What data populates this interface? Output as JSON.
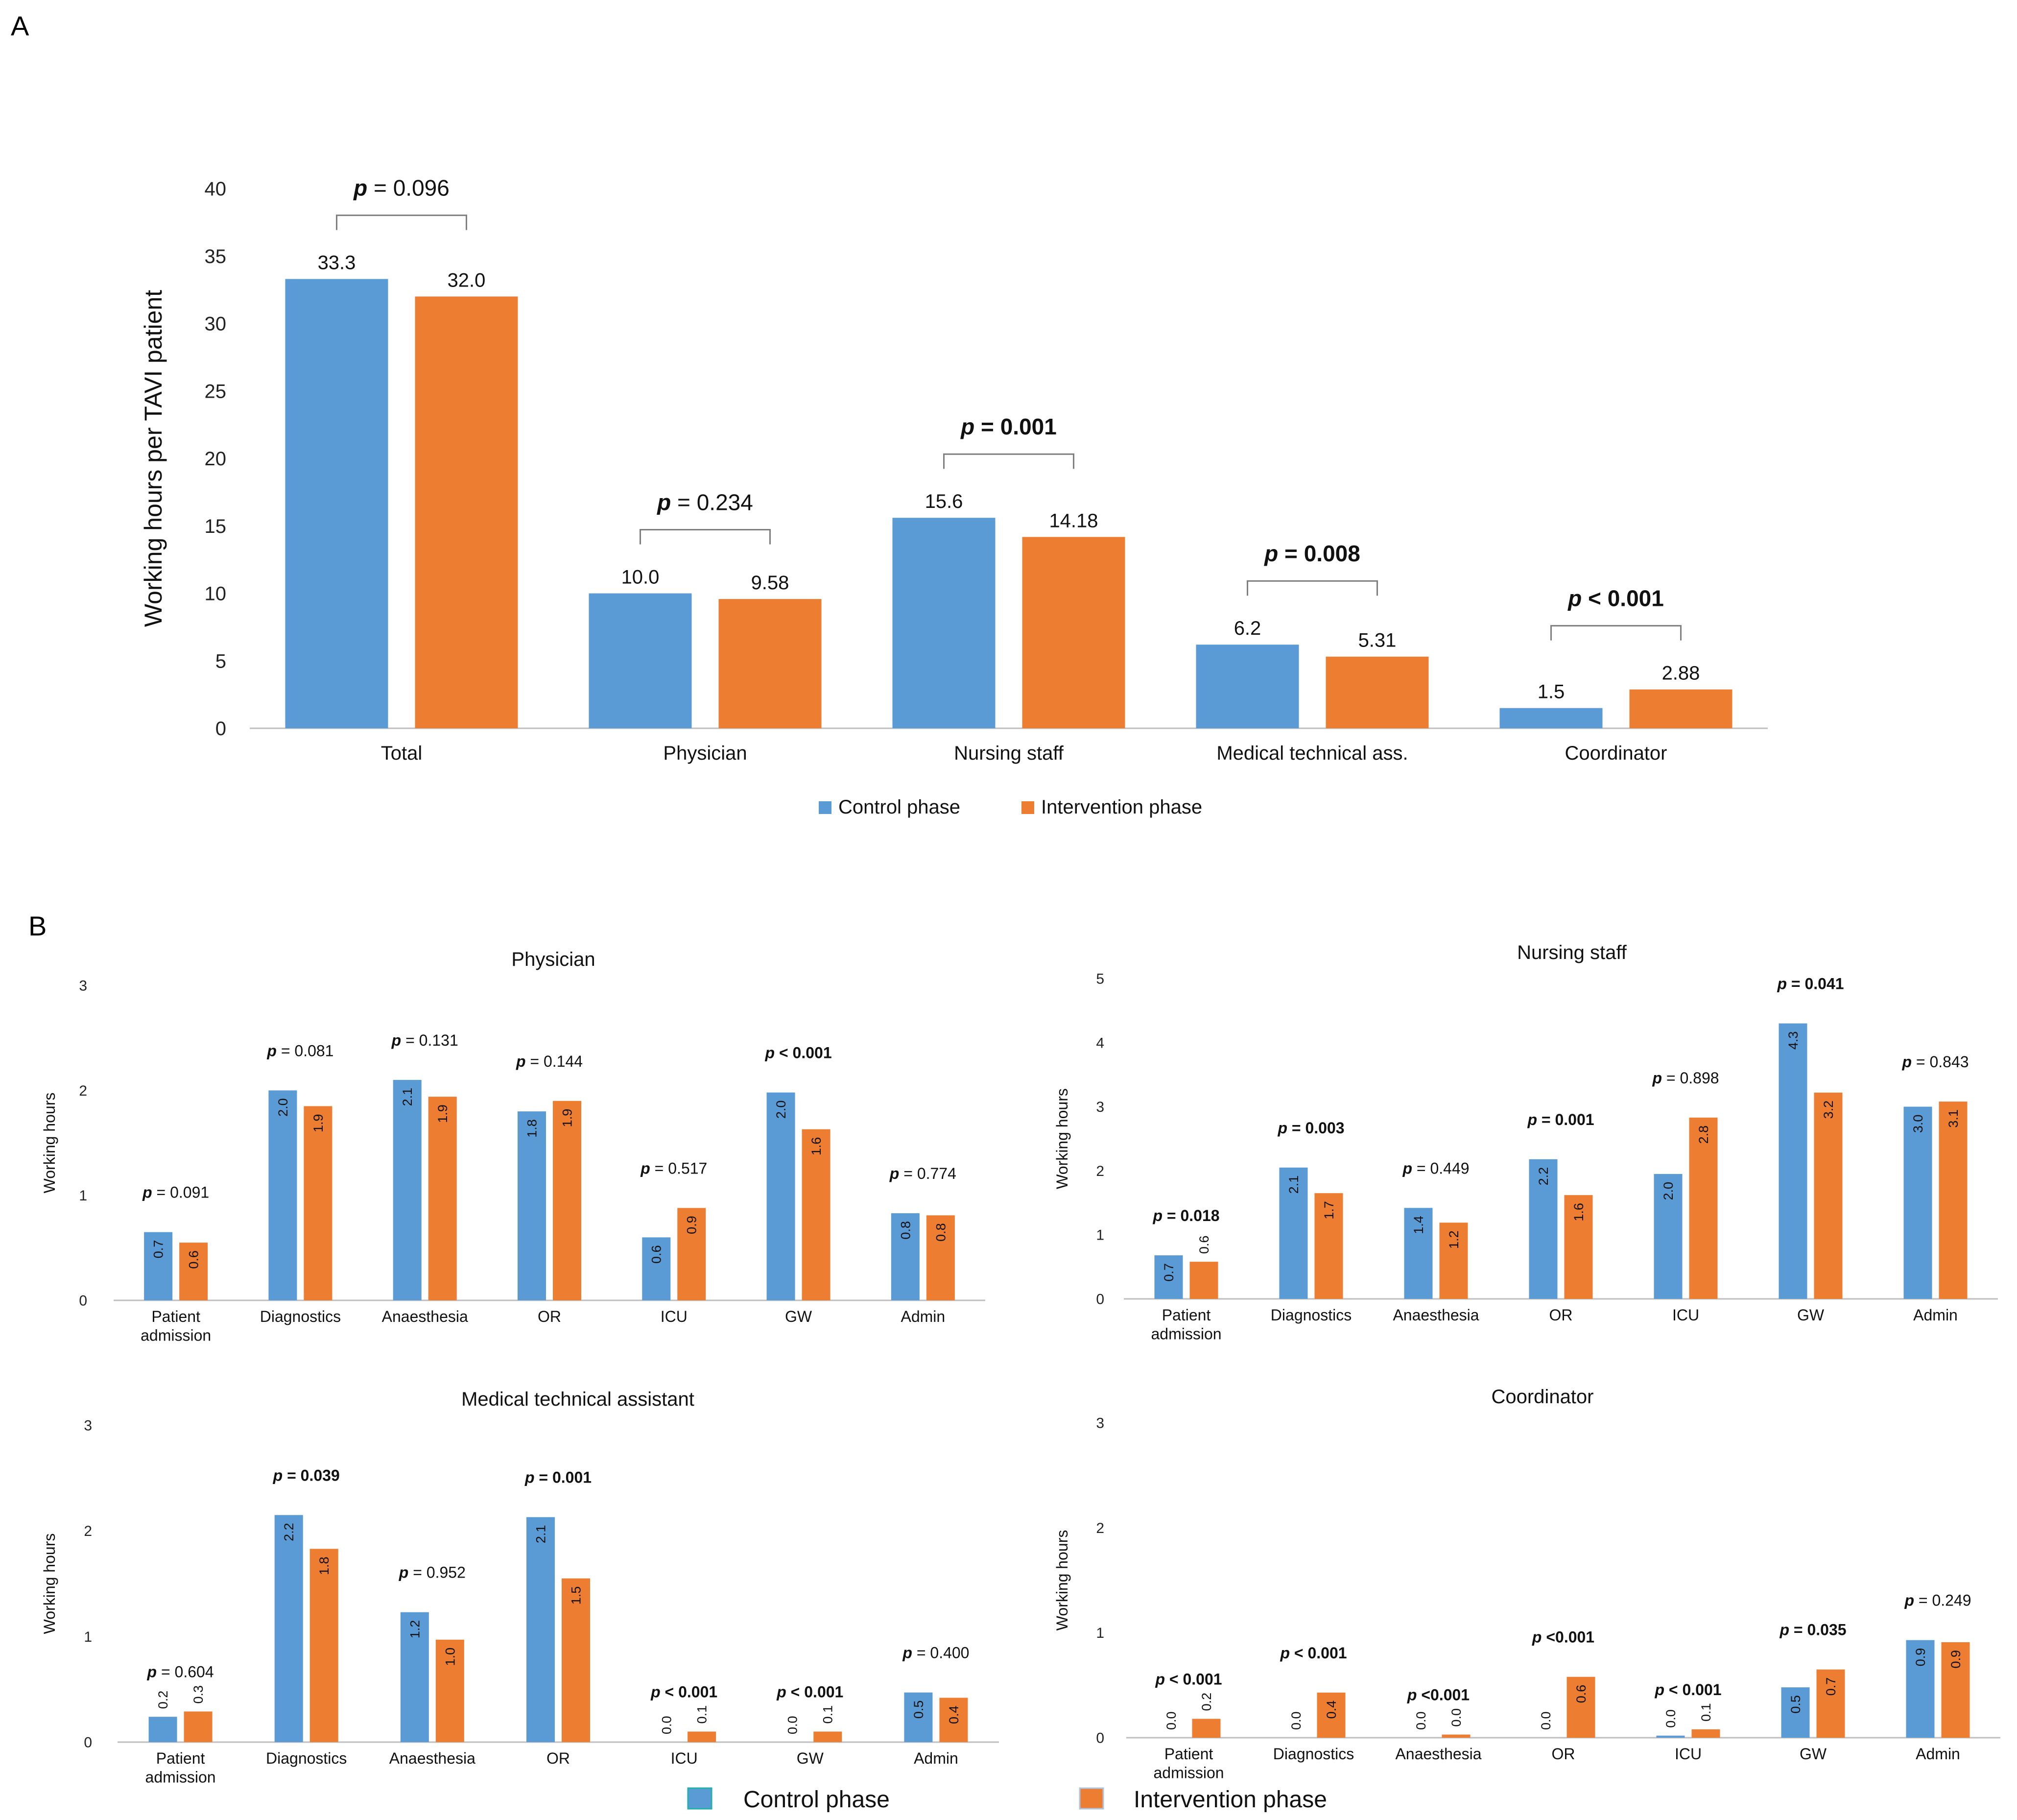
{
  "panel_labels": {
    "a": "A",
    "b": "B"
  },
  "colors": {
    "control": "#5B9BD5",
    "intervention": "#ED7D31",
    "axis": "#BFBFBF",
    "bracket": "#7F7F7F"
  },
  "legend": {
    "control": "Control phase",
    "intervention": "Intervention phase"
  },
  "p_prefix": "p",
  "chart_data": [
    {
      "id": "A",
      "type": "bar",
      "title": "",
      "ylabel": "Working hours per TAVI patient",
      "ylim": [
        0,
        40
      ],
      "yticks": [
        0,
        5,
        10,
        15,
        20,
        25,
        30,
        35,
        40
      ],
      "categories": [
        "Total",
        "Physician",
        "Nursing staff",
        "Medical technical ass.",
        "Coordinator"
      ],
      "series": [
        {
          "name": "Control phase",
          "values": [
            33.3,
            10.0,
            15.6,
            6.2,
            1.5
          ],
          "labels": [
            "33.3",
            "10.0",
            "15.6",
            "6.2",
            "1.5"
          ]
        },
        {
          "name": "Intervention phase",
          "values": [
            32.0,
            9.58,
            14.18,
            5.31,
            2.88
          ],
          "labels": [
            "32.0",
            "9.58",
            "14.18",
            "5.31",
            "2.88"
          ]
        }
      ],
      "pvalues": [
        {
          "text": " = 0.096",
          "bold": false
        },
        {
          "text": " = 0.234",
          "bold": false
        },
        {
          "text": " = 0.001",
          "bold": true
        },
        {
          "text": " = 0.008",
          "bold": true
        },
        {
          "text": " < 0.001",
          "bold": true
        }
      ]
    },
    {
      "id": "B1",
      "type": "bar",
      "title": "Physician",
      "ylabel": "Working hours",
      "ylim": [
        0,
        3
      ],
      "yticks": [
        0,
        1,
        2,
        3
      ],
      "categories": [
        "Patient admission",
        "Diagnostics",
        "Anaesthesia",
        "OR",
        "ICU",
        "GW",
        "Admin"
      ],
      "series": [
        {
          "name": "Control phase",
          "values": [
            0.65,
            2.0,
            2.1,
            1.8,
            0.6,
            1.98,
            0.83
          ],
          "labels": [
            "0.7",
            "2.0",
            "2.1",
            "1.8",
            "0.6",
            "2.0",
            "0.8"
          ]
        },
        {
          "name": "Intervention phase",
          "values": [
            0.55,
            1.85,
            1.94,
            1.9,
            0.88,
            1.63,
            0.81
          ],
          "labels": [
            "0.6",
            "1.9",
            "1.9",
            "1.9",
            "0.9",
            "1.6",
            "0.8"
          ]
        }
      ],
      "pvalues": [
        {
          "text": " = 0.091",
          "bold": false
        },
        {
          "text": " = 0.081",
          "bold": false
        },
        {
          "text": " = 0.131",
          "bold": false
        },
        {
          "text": " = 0.144",
          "bold": false
        },
        {
          "text": " = 0.517",
          "bold": false
        },
        {
          "text": " < 0.001",
          "bold": true
        },
        {
          "text": " = 0.774",
          "bold": false
        }
      ]
    },
    {
      "id": "B2",
      "type": "bar",
      "title": "Nursing staff",
      "ylabel": "Working hours",
      "ylim": [
        0,
        5
      ],
      "yticks": [
        0,
        1,
        2,
        3,
        4,
        5
      ],
      "categories": [
        "Patient admission",
        "Diagnostics",
        "Anaesthesia",
        "OR",
        "ICU",
        "GW",
        "Admin"
      ],
      "series": [
        {
          "name": "Control phase",
          "values": [
            0.68,
            2.05,
            1.42,
            2.18,
            1.95,
            4.3,
            3.0
          ],
          "labels": [
            "0.7",
            "2.1",
            "1.4",
            "2.2",
            "2.0",
            "4.3",
            "3.0"
          ]
        },
        {
          "name": "Intervention phase",
          "values": [
            0.58,
            1.65,
            1.19,
            1.62,
            2.83,
            3.22,
            3.08
          ],
          "labels": [
            "0.6",
            "1.7",
            "1.2",
            "1.6",
            "2.8",
            "3.2",
            "3.1"
          ]
        }
      ],
      "pvalues": [
        {
          "text": " = 0.018",
          "bold": true
        },
        {
          "text": " = 0.003",
          "bold": true
        },
        {
          "text": " = 0.449",
          "bold": false
        },
        {
          "text": " = 0.001",
          "bold": true
        },
        {
          "text": " = 0.898",
          "bold": false
        },
        {
          "text": " = 0.041",
          "bold": true
        },
        {
          "text": " = 0.843",
          "bold": false
        }
      ]
    },
    {
      "id": "B3",
      "type": "bar",
      "title": "Medical technical assistant",
      "ylabel": "Working hours",
      "ylim": [
        0,
        3
      ],
      "yticks": [
        0,
        1,
        2,
        3
      ],
      "categories": [
        "Patient admission",
        "Diagnostics",
        "Anaesthesia",
        "OR",
        "ICU",
        "GW",
        "Admin"
      ],
      "series": [
        {
          "name": "Control phase",
          "values": [
            0.24,
            2.15,
            1.23,
            2.13,
            0.0,
            0.0,
            0.47
          ],
          "labels": [
            "0.2",
            "2.2",
            "1.2",
            "2.1",
            "0.0",
            "0.0",
            "0.5"
          ]
        },
        {
          "name": "Intervention phase",
          "values": [
            0.29,
            1.83,
            0.97,
            1.55,
            0.1,
            0.1,
            0.42
          ],
          "labels": [
            "0.3",
            "1.8",
            "1.0",
            "1.5",
            "0.1",
            "0.1",
            "0.4"
          ]
        }
      ],
      "pvalues": [
        {
          "text": " = 0.604",
          "bold": false
        },
        {
          "text": " = 0.039",
          "bold": true
        },
        {
          "text": " = 0.952",
          "bold": false
        },
        {
          "text": " = 0.001",
          "bold": true
        },
        {
          "text": " < 0.001",
          "bold": true
        },
        {
          "text": " < 0.001",
          "bold": true
        },
        {
          "text": " = 0.400",
          "bold": false
        }
      ]
    },
    {
      "id": "B4",
      "type": "bar",
      "title": "Coordinator",
      "ylabel": "Working hours",
      "ylim": [
        0,
        3
      ],
      "yticks": [
        0,
        1,
        2,
        3
      ],
      "categories": [
        "Patient admission",
        "Diagnostics",
        "Anaesthesia",
        "OR",
        "ICU",
        "GW",
        "Admin"
      ],
      "series": [
        {
          "name": "Control phase",
          "values": [
            0.0,
            0.0,
            0.0,
            0.0,
            0.02,
            0.48,
            0.93
          ],
          "labels": [
            "0.0",
            "0.0",
            "0.0",
            "0.0",
            "0.0",
            "0.5",
            "0.9"
          ]
        },
        {
          "name": "Intervention phase",
          "values": [
            0.18,
            0.43,
            0.03,
            0.58,
            0.08,
            0.65,
            0.91
          ],
          "labels": [
            "0.2",
            "0.4",
            "0.0",
            "0.6",
            "0.1",
            "0.7",
            "0.9"
          ]
        }
      ],
      "pvalues": [
        {
          "text": " < 0.001",
          "bold": true
        },
        {
          "text": " < 0.001",
          "bold": true
        },
        {
          "text": " <0.001",
          "bold": true
        },
        {
          "text": " <0.001",
          "bold": true
        },
        {
          "text": " < 0.001",
          "bold": true
        },
        {
          "text": " = 0.035",
          "bold": true
        },
        {
          "text": " = 0.249",
          "bold": false
        }
      ]
    }
  ]
}
